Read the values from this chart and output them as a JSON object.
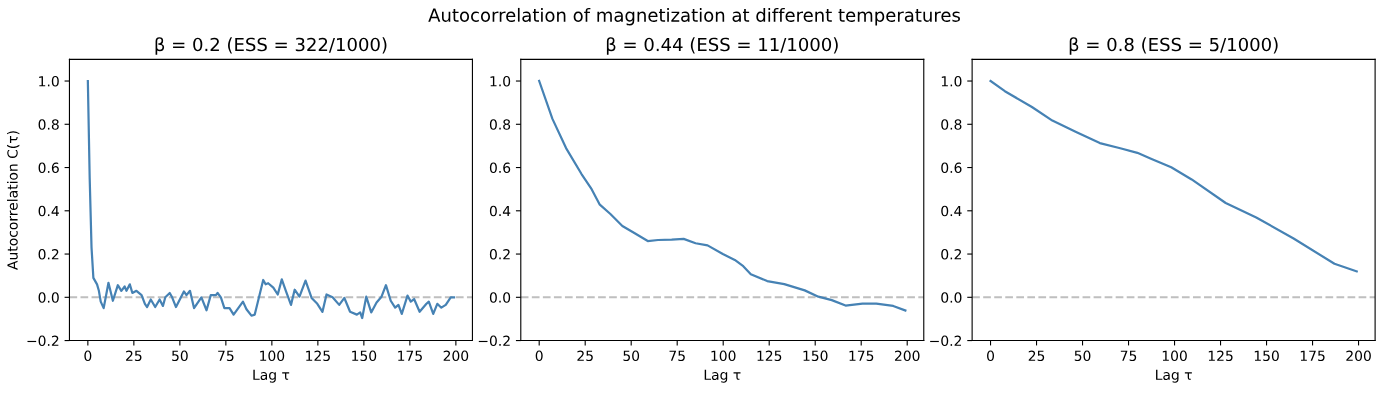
{
  "chart_data": [
    {
      "type": "line",
      "title": "β = 0.2 (ESS = 322/1000)",
      "xlabel": "Lag τ",
      "ylabel": "Autocorrelation C(τ)",
      "annotations": [
        "Autocorrelation of magnetization at different temperatures"
      ],
      "series": [
        {
          "color": "#4682b4",
          "x": [
            0,
            1,
            2,
            3,
            5,
            6,
            7,
            8.6,
            11.2,
            13.6,
            16.3,
            18.2,
            20,
            21,
            22.8,
            24.2,
            26.4,
            29.2,
            31,
            32.2,
            34.2,
            36.6,
            39,
            40.8,
            42.1,
            44.5,
            45.8,
            47.9,
            52.2,
            53.6,
            55.5,
            57.7,
            61.7,
            64.5,
            66.8,
            69.6,
            70.5,
            72.3,
            74.2,
            77,
            79.2,
            84.3,
            86.2,
            88.9,
            90.7,
            95.3,
            96.6,
            98,
            100.8,
            103.2,
            105.4,
            107.6,
            110.4,
            112.4,
            115,
            118.3,
            121.6,
            124.7,
            127.5,
            129.7,
            133,
            136.6,
            139.4,
            142.5,
            146.2,
            148,
            149.1,
            151.3,
            154,
            156.9,
            159.6,
            162,
            164.6,
            167,
            168.8,
            170.6,
            173.7,
            175.5,
            177.3,
            180.3,
            184,
            185.3,
            187.7,
            189.9,
            192.1,
            194.5,
            197.2,
            199
          ],
          "values": [
            1.0,
            0.55,
            0.23,
            0.09,
            0.06,
            0.03,
            -0.02,
            -0.05,
            0.067,
            -0.016,
            0.056,
            0.03,
            0.05,
            0.03,
            0.06,
            0.02,
            0.03,
            0.01,
            -0.03,
            -0.045,
            -0.01,
            -0.045,
            -0.01,
            -0.04,
            0.0,
            0.02,
            0.0,
            -0.045,
            0.027,
            0.01,
            0.03,
            -0.05,
            0.0,
            -0.06,
            0.01,
            0.01,
            0.02,
            0.0,
            -0.05,
            -0.05,
            -0.08,
            -0.02,
            -0.055,
            -0.085,
            -0.08,
            0.08,
            0.06,
            0.065,
            0.045,
            0.013,
            0.083,
            0.03,
            -0.035,
            0.035,
            0.003,
            0.077,
            -0.003,
            -0.03,
            -0.067,
            0.013,
            0.0,
            -0.035,
            -0.003,
            -0.067,
            -0.08,
            -0.07,
            -0.096,
            0.003,
            -0.07,
            -0.024,
            0.003,
            0.056,
            -0.016,
            -0.048,
            -0.035,
            -0.077,
            0.008,
            -0.02,
            -0.008,
            -0.067,
            -0.03,
            -0.02,
            -0.077,
            -0.03,
            -0.048,
            -0.035,
            0.0,
            0.0
          ]
        }
      ],
      "xlim": [
        -10,
        209
      ],
      "xticks": [
        0,
        25,
        50,
        75,
        100,
        125,
        150,
        175,
        200
      ],
      "ylim": [
        -0.2,
        1.1
      ],
      "yticks": [
        {
          "value": -0.2,
          "label": "−0.2"
        },
        {
          "value": 0.0,
          "label": "0.0"
        },
        {
          "value": 0.2,
          "label": "0.2"
        },
        {
          "value": 0.4,
          "label": "0.4"
        },
        {
          "value": 0.6,
          "label": "0.6"
        },
        {
          "value": 0.8,
          "label": "0.8"
        },
        {
          "value": 1.0,
          "label": "1.0"
        }
      ],
      "ref_lines": [
        {
          "axis": "y",
          "value": 0,
          "color": "#bfbfbf",
          "line_style": "dashed"
        }
      ],
      "grid": false,
      "legend": false
    },
    {
      "type": "line",
      "title": "β = 0.44 (ESS = 11/1000)",
      "xlabel": "Lag τ",
      "series": [
        {
          "color": "#4682b4",
          "x": [
            0,
            7.2,
            14.6,
            23,
            28.5,
            32.8,
            38.7,
            45.2,
            51.7,
            59,
            64.6,
            72,
            78.5,
            85,
            91.5,
            99.8,
            106.3,
            110.9,
            115,
            123.9,
            133.2,
            144.3,
            151.7,
            159,
            166.5,
            175.7,
            183.2,
            192.4,
            199
          ],
          "values": [
            1.0,
            0.825,
            0.69,
            0.57,
            0.5,
            0.43,
            0.385,
            0.33,
            0.297,
            0.26,
            0.265,
            0.267,
            0.27,
            0.25,
            0.24,
            0.2,
            0.173,
            0.144,
            0.107,
            0.075,
            0.061,
            0.032,
            0.003,
            -0.013,
            -0.038,
            -0.029,
            -0.029,
            -0.04,
            -0.061
          ]
        }
      ],
      "xlim": [
        -10,
        209
      ],
      "xticks": [
        0,
        25,
        50,
        75,
        100,
        125,
        150,
        175,
        200
      ],
      "ylim": [
        -0.2,
        1.1
      ],
      "yticks": [
        {
          "value": -0.2,
          "label": "−0.2"
        },
        {
          "value": 0.0,
          "label": "0.0"
        },
        {
          "value": 0.2,
          "label": "0.2"
        },
        {
          "value": 0.4,
          "label": "0.4"
        },
        {
          "value": 0.6,
          "label": "0.6"
        },
        {
          "value": 0.8,
          "label": "0.8"
        },
        {
          "value": 1.0,
          "label": "1.0"
        }
      ],
      "ref_lines": [
        {
          "axis": "y",
          "value": 0,
          "color": "#bfbfbf",
          "line_style": "dashed"
        }
      ],
      "grid": false,
      "legend": false
    },
    {
      "type": "line",
      "title": "β = 0.8 (ESS = 5/1000)",
      "xlabel": "Lag τ",
      "series": [
        {
          "color": "#4682b4",
          "x": [
            0,
            7.8,
            22.5,
            33.6,
            46.5,
            59.4,
            70.5,
            79.8,
            87.2,
            98.2,
            109.3,
            127.8,
            144.4,
            164.7,
            186.9,
            199
          ],
          "values": [
            1.0,
            0.953,
            0.88,
            0.817,
            0.764,
            0.713,
            0.689,
            0.668,
            0.641,
            0.601,
            0.545,
            0.436,
            0.369,
            0.272,
            0.155,
            0.12
          ]
        }
      ],
      "xlim": [
        -10,
        209
      ],
      "xticks": [
        0,
        25,
        50,
        75,
        100,
        125,
        150,
        175,
        200
      ],
      "ylim": [
        -0.2,
        1.1
      ],
      "yticks": [
        {
          "value": -0.2,
          "label": "−0.2"
        },
        {
          "value": 0.0,
          "label": "0.0"
        },
        {
          "value": 0.2,
          "label": "0.2"
        },
        {
          "value": 0.4,
          "label": "0.4"
        },
        {
          "value": 0.6,
          "label": "0.6"
        },
        {
          "value": 0.8,
          "label": "0.8"
        },
        {
          "value": 1.0,
          "label": "1.0"
        }
      ],
      "ref_lines": [
        {
          "axis": "y",
          "value": 0,
          "color": "#bfbfbf",
          "line_style": "dashed"
        }
      ],
      "grid": false,
      "legend": false
    }
  ]
}
